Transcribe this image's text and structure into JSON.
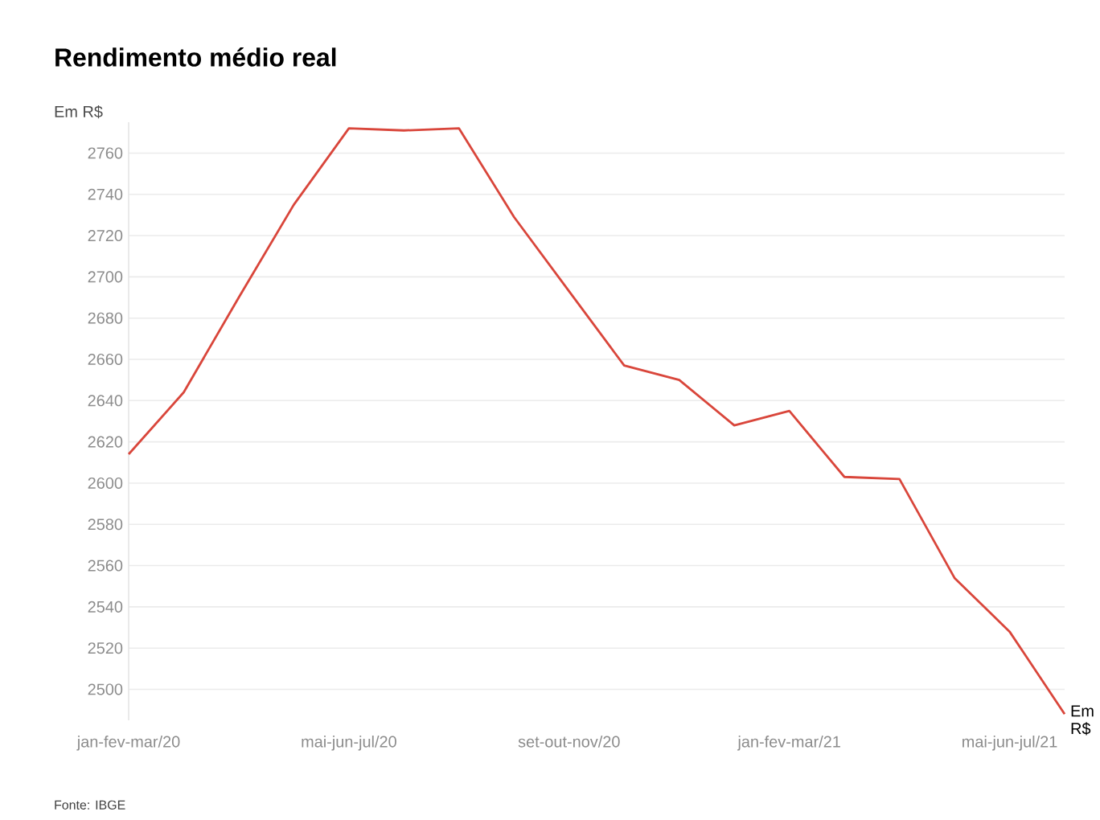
{
  "chart_data": {
    "type": "line",
    "title": "Rendimento médio real",
    "ylabel": "Em R$",
    "xlabel": "Em R$",
    "categories": [
      "jan-fev-mar/20",
      null,
      null,
      null,
      "mai-jun-jul/20",
      null,
      null,
      null,
      "set-out-nov/20",
      null,
      null,
      null,
      "jan-fev-mar/21",
      null,
      null,
      null,
      "mai-jun-jul/21",
      null
    ],
    "values": [
      2614,
      2644,
      2690,
      2735,
      2772,
      2771,
      2772,
      2729,
      2693,
      2657,
      2650,
      2628,
      2635,
      2603,
      2602,
      2554,
      2528,
      2488
    ],
    "color": "#d9463b",
    "ylim": [
      2485,
      2775
    ],
    "yticks": [
      2500,
      2520,
      2540,
      2560,
      2580,
      2600,
      2620,
      2640,
      2660,
      2680,
      2700,
      2720,
      2740,
      2760
    ],
    "grid": "y",
    "marker": "none",
    "line_style": "solid",
    "annotations": [
      "Fonte: IBGE"
    ]
  }
}
